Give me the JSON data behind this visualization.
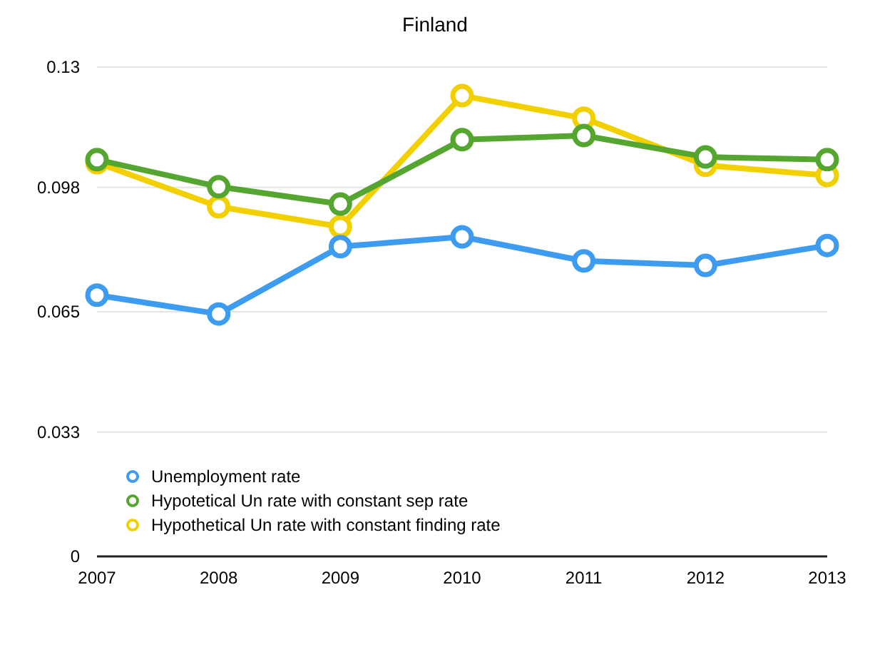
{
  "chart_data": {
    "type": "line",
    "title": "Finland",
    "categories": [
      "2007",
      "2008",
      "2009",
      "2010",
      "2011",
      "2012",
      "2013"
    ],
    "series": [
      {
        "name": "Unemployment rate",
        "color": "#3d9bf0",
        "values": [
          0.0694,
          0.0644,
          0.0823,
          0.0849,
          0.0785,
          0.0773,
          0.0826
        ]
      },
      {
        "name": "Hypotetical Un rate with constant sep rate",
        "color": "#55a630",
        "values": [
          0.1054,
          0.0982,
          0.0936,
          0.1107,
          0.1118,
          0.1061,
          0.1054
        ]
      },
      {
        "name": "Hypothetical Un rate with constant finding rate",
        "color": "#f2d000",
        "values": [
          0.1046,
          0.0929,
          0.0876,
          0.1224,
          0.1164,
          0.1039,
          0.1012
        ]
      }
    ],
    "ylim": [
      0,
      0.13
    ],
    "yticks": [
      0,
      0.033,
      0.065,
      0.098,
      0.13
    ],
    "grid": "y",
    "legend": "bottom left",
    "marker": "circle",
    "line_style": "solid"
  }
}
